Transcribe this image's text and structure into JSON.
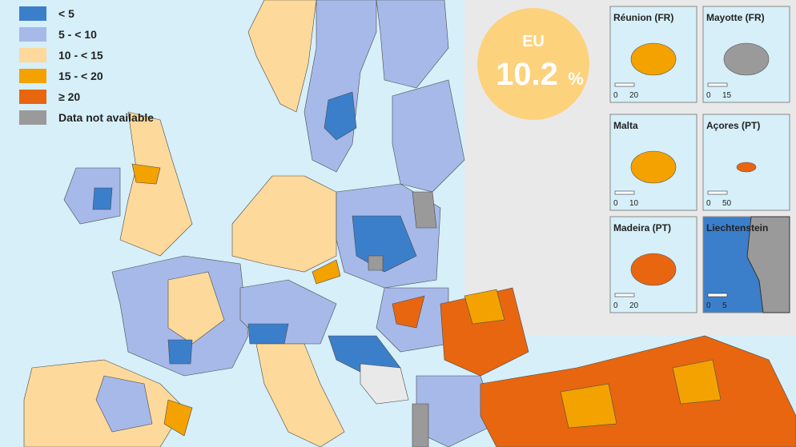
{
  "legend": [
    {
      "label": "< 5",
      "color": "#3b7fcb"
    },
    {
      "label": "5 - < 10",
      "color": "#a6b9e9"
    },
    {
      "label": "10 - < 15",
      "color": "#fdd99b"
    },
    {
      "label": "15 - < 20",
      "color": "#f3a200"
    },
    {
      "label": "≥ 20",
      "color": "#e8660f"
    },
    {
      "label": "Data not available",
      "color": "#9a9a9a"
    }
  ],
  "eu_badge": {
    "label": "EU",
    "value": "10.2",
    "unit": "%"
  },
  "insets": [
    {
      "title": "Réunion (FR)",
      "scale_start": "0",
      "scale_end": "20"
    },
    {
      "title": "Mayotte (FR)",
      "scale_start": "0",
      "scale_end": "15"
    },
    {
      "title": "Malta",
      "scale_start": "0",
      "scale_end": "10"
    },
    {
      "title": "Açores (PT)",
      "scale_start": "0",
      "scale_end": "50"
    },
    {
      "title": "Madeira (PT)",
      "scale_start": "0",
      "scale_end": "20"
    },
    {
      "title": "Liechtenstein",
      "scale_start": "0",
      "scale_end": "5"
    }
  ]
}
